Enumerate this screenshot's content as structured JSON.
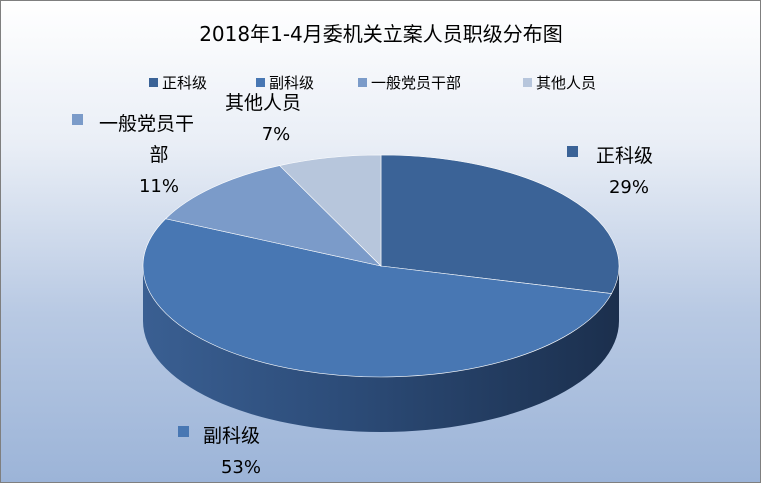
{
  "chart_data": {
    "type": "pie",
    "title": "2018年1-4月委机关立案人员职级分布图",
    "legend_position": "top",
    "categories": [
      "正科级",
      "副科级",
      "一般党员干部",
      "其他人员"
    ],
    "values": [
      29,
      53,
      11,
      7
    ],
    "labels": [
      "29%",
      "53%",
      "11%",
      "7%"
    ],
    "colors": [
      "#3b6397",
      "#4877b3",
      "#7b9bc9",
      "#b7c6dc"
    ],
    "legend": [
      "正科级",
      "副科级",
      "一般党员干部",
      "其他人员"
    ]
  }
}
